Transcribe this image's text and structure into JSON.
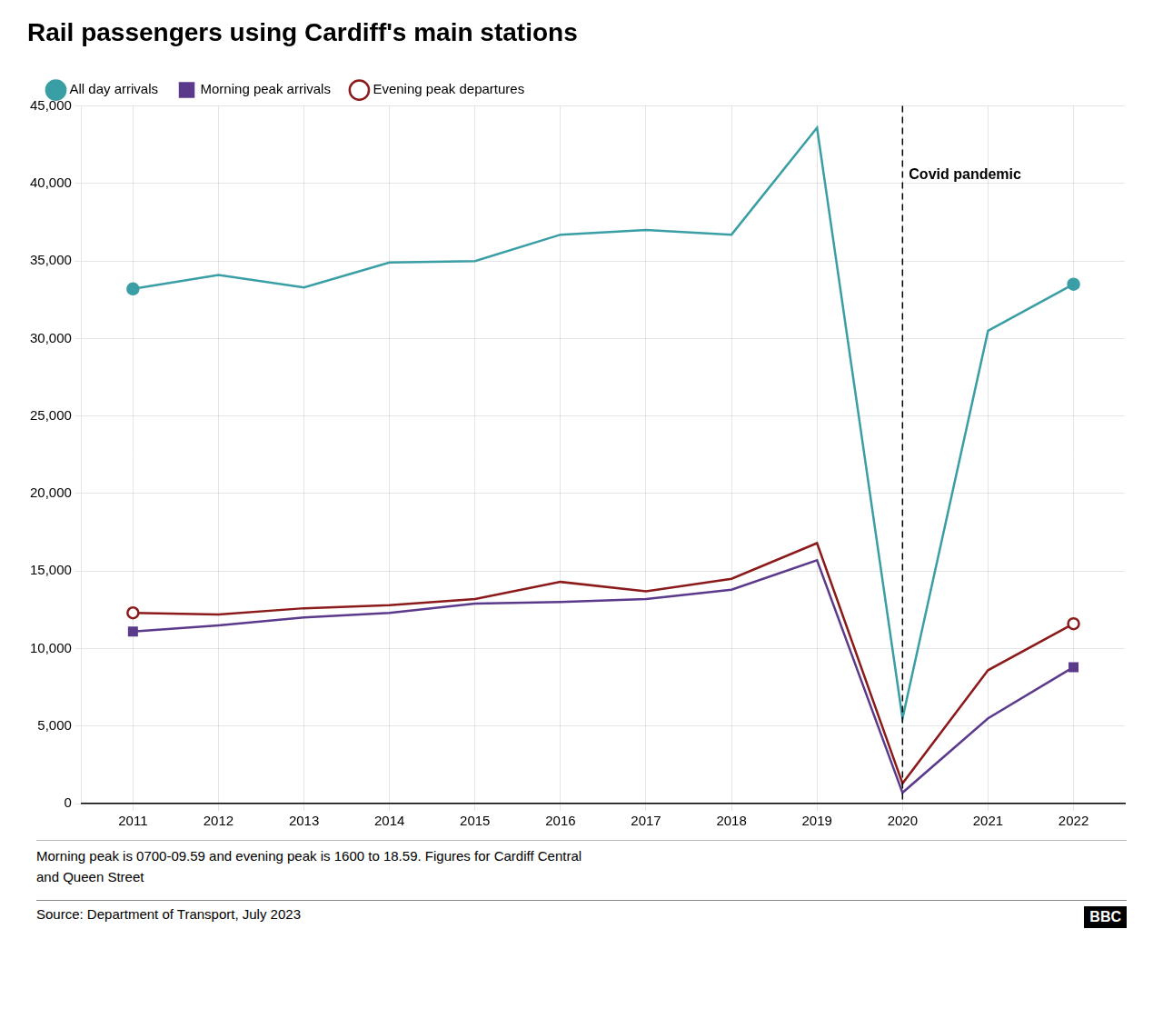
{
  "chart_data": {
    "type": "line",
    "title": "Rail passengers using Cardiff's main stations",
    "x": [
      2011,
      2012,
      2013,
      2014,
      2015,
      2016,
      2017,
      2018,
      2019,
      2020,
      2021,
      2022
    ],
    "series": [
      {
        "name": "All day arrivals",
        "color": "#3a9ea5",
        "marker": "circle",
        "values": [
          33200,
          34100,
          33300,
          34900,
          35000,
          36700,
          37000,
          36700,
          43600,
          5500,
          30500,
          33500
        ]
      },
      {
        "name": "Morning peak arrivals",
        "color": "#5b3a8c",
        "marker": "square",
        "values": [
          11100,
          11500,
          12000,
          12300,
          12900,
          13000,
          13200,
          13800,
          15700,
          700,
          5500,
          8800
        ]
      },
      {
        "name": "Evening peak departures",
        "color": "#8b1a1a",
        "marker": "open_circle",
        "values": [
          12300,
          12200,
          12600,
          12800,
          13200,
          14300,
          13700,
          14500,
          16800,
          1300,
          8600,
          11600
        ]
      }
    ],
    "xlim": [
      2010.4,
      2022.6
    ],
    "xticks": [
      2011,
      2012,
      2013,
      2014,
      2015,
      2016,
      2017,
      2018,
      2019,
      2020,
      2021,
      2022
    ],
    "ylim": [
      0,
      45000
    ],
    "yticks": [
      0,
      {
        "value": 5000,
        "label": "5,000"
      },
      {
        "value": 10000,
        "label": "10,000"
      },
      {
        "value": 15000,
        "label": "15,000"
      },
      {
        "value": 20000,
        "label": "20,000"
      },
      {
        "value": 25000,
        "label": "25,000"
      },
      {
        "value": 30000,
        "label": "30,000"
      },
      {
        "value": 35000,
        "label": "35,000"
      },
      {
        "value": 40000,
        "label": "40,000"
      },
      {
        "value": 45000,
        "label": "45,000"
      }
    ],
    "grid": true,
    "legend": "top-left",
    "annotations": [
      {
        "text": "Covid pandemic",
        "x": 2020,
        "y": 41000,
        "line_style": "dashed"
      }
    ],
    "notes": [
      "Morning peak is 0700-09.59 and evening peak is 1600 to 18.59. Figures for Cardiff Central",
      "and Queen Street"
    ],
    "source": "Source: Department of Transport, July 2023",
    "credit": "BBC"
  }
}
